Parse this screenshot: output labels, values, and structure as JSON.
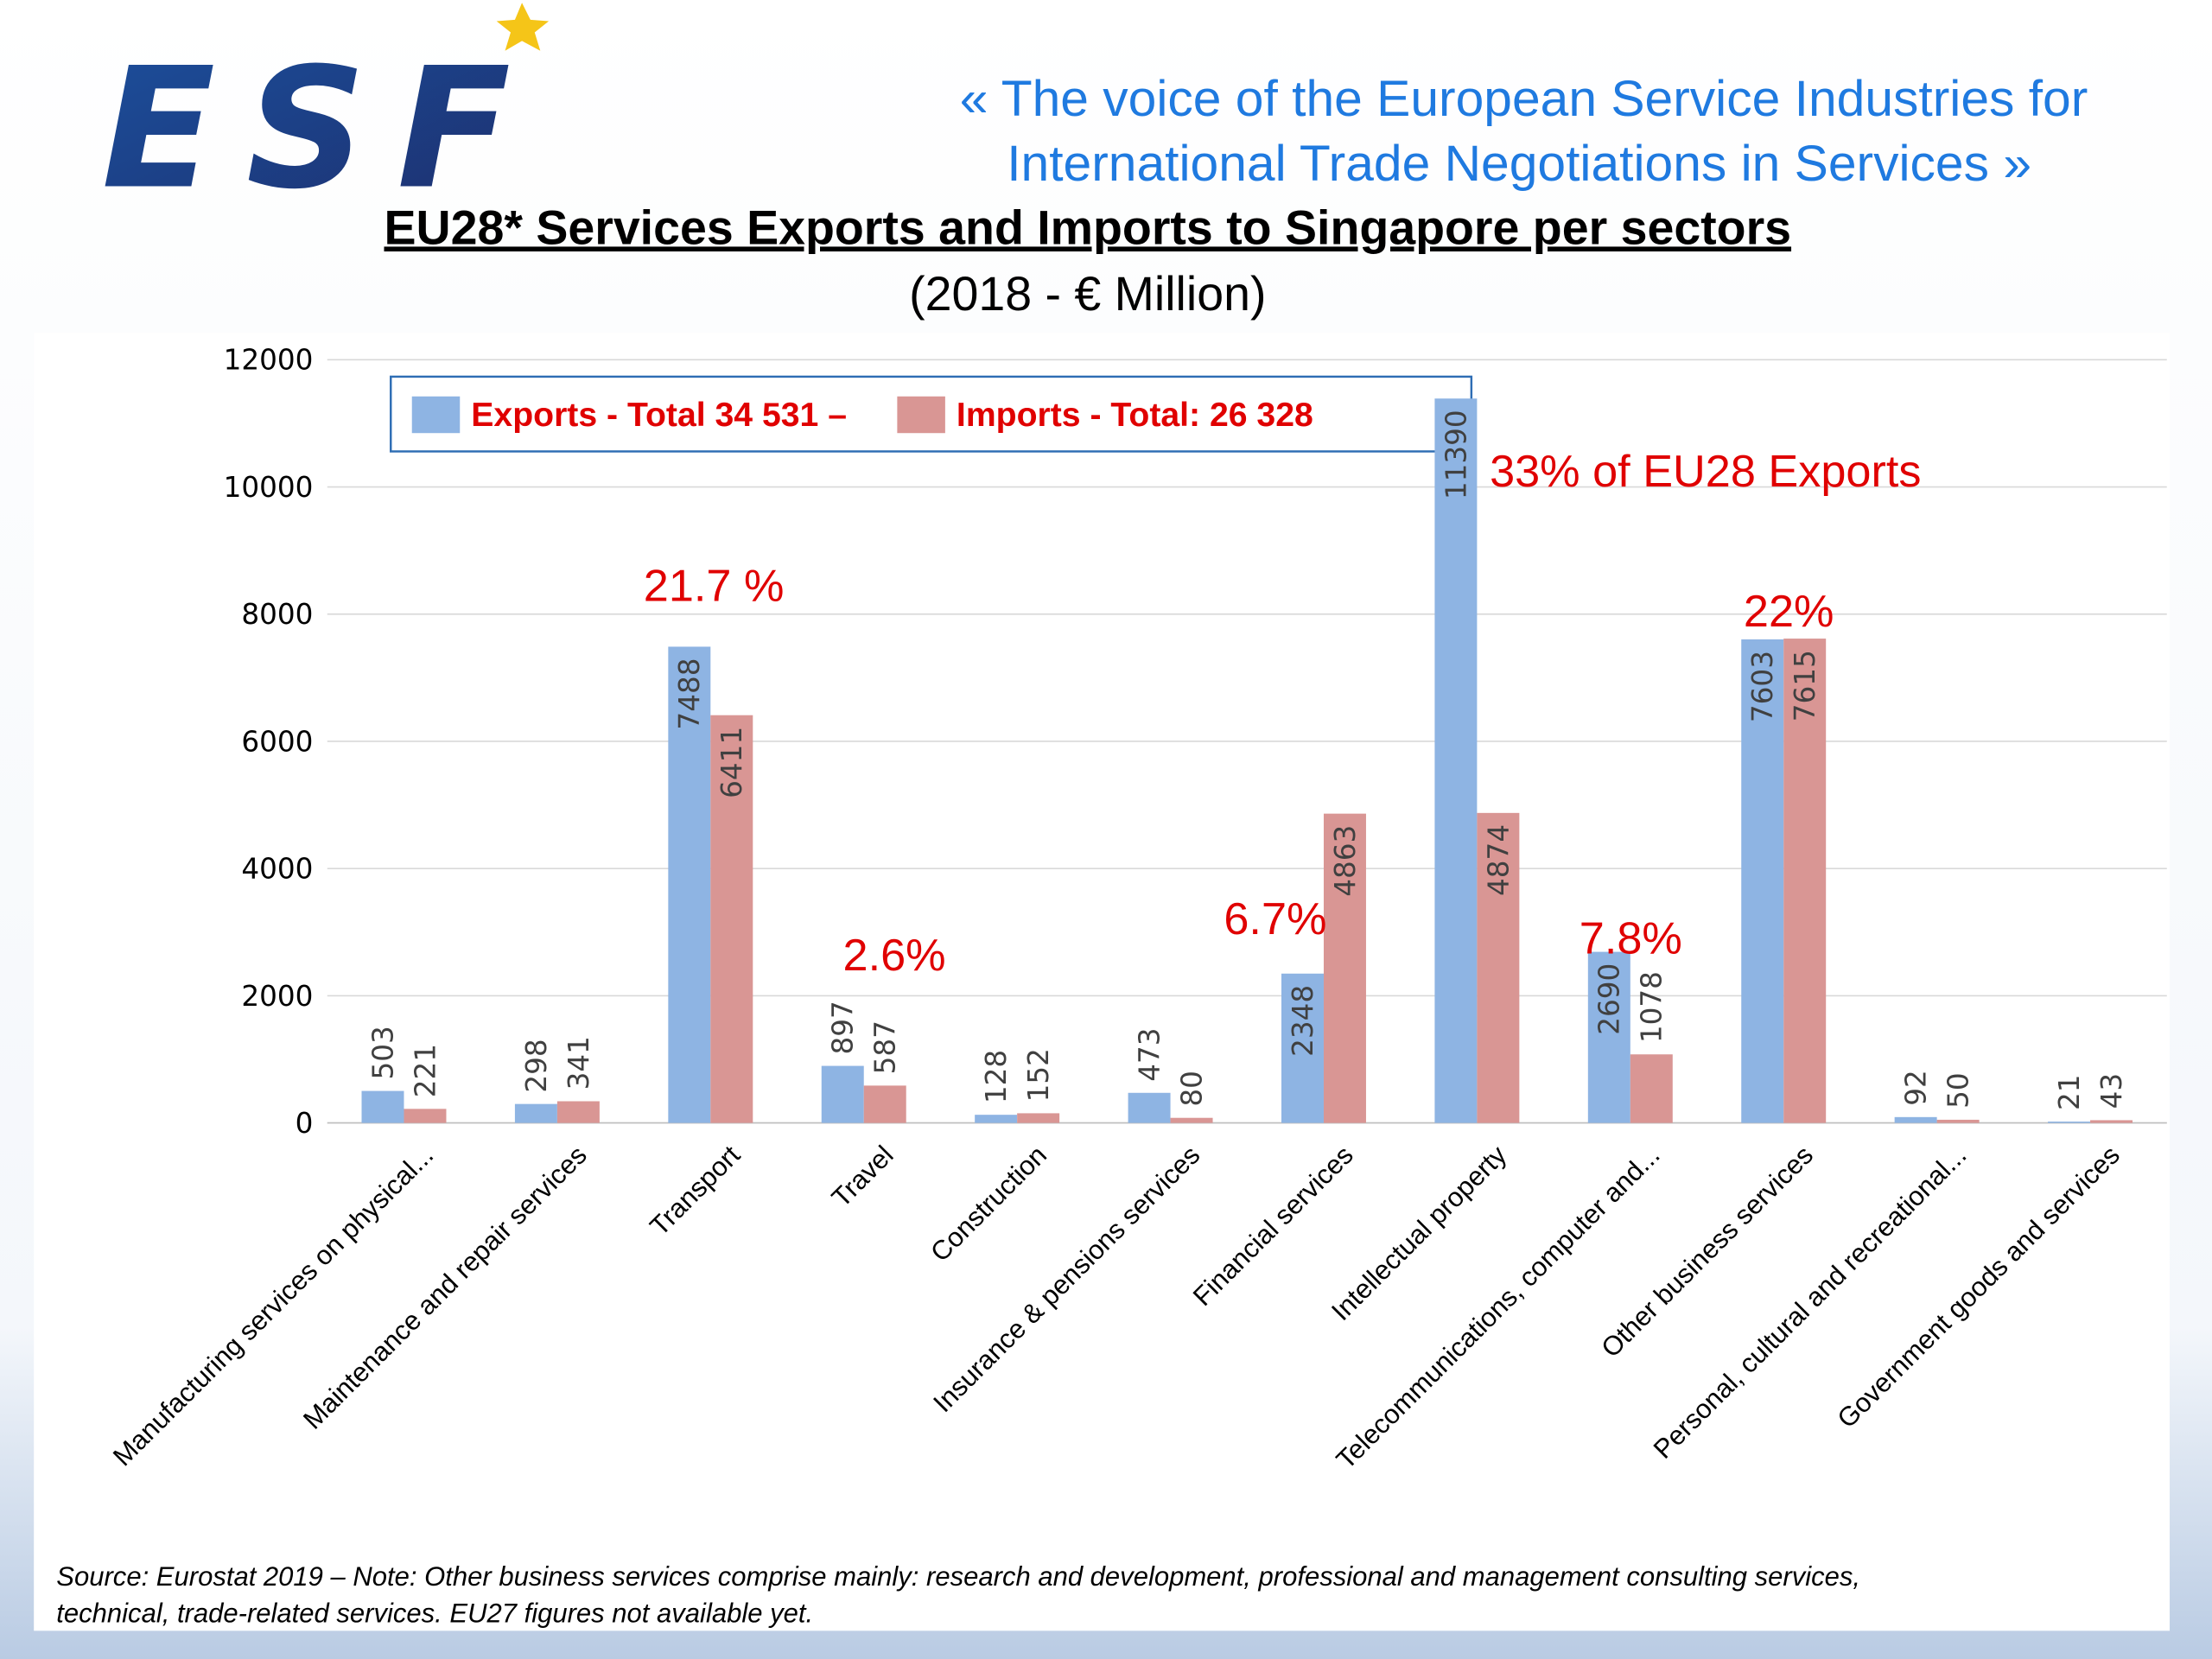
{
  "logo": "ESF",
  "tagline": [
    "«  The voice of the European Service Industries for",
    "International Trade Negotiations in Services  »"
  ],
  "chart_data": {
    "type": "bar",
    "title": "EU28* Services Exports and Imports to Singapore per sectors",
    "subtitle": "(2018 - € Million)",
    "categories": [
      "Manufacturing services on physical...",
      "Maintenance and repair services",
      "Transport",
      "Travel",
      "Construction",
      "Insurance & pensions services",
      "Financial services",
      "Intellectual property",
      "Telecommunications, computer and...",
      "Other business services",
      "Personal, cultural and recreational...",
      "Government goods and services"
    ],
    "series": [
      {
        "name": "Exports - Total 34 531 –",
        "color": "#8eb4e3",
        "values": [
          503,
          298,
          7488,
          897,
          128,
          473,
          2348,
          11390,
          2690,
          7603,
          92,
          21
        ]
      },
      {
        "name": "Imports - Total: 26 328",
        "color": "#d99694",
        "values": [
          221,
          341,
          6411,
          587,
          152,
          80,
          4863,
          4874,
          1078,
          7615,
          50,
          43
        ]
      }
    ],
    "ylim": [
      0,
      12000
    ],
    "yticks": [
      0,
      2000,
      4000,
      6000,
      8000,
      10000,
      12000
    ],
    "grid": true,
    "legend": "top",
    "annotations": [
      "21.7 %",
      "2.6%",
      "6.7%",
      "33% of EU28 Exports",
      "7.8%",
      "22%"
    ],
    "note": [
      "Source: Eurostat 2019 – Note: Other business services comprise mainly: research and development, professional and management consulting services,",
      "technical, trade-related services. EU27 figures not available yet."
    ]
  }
}
